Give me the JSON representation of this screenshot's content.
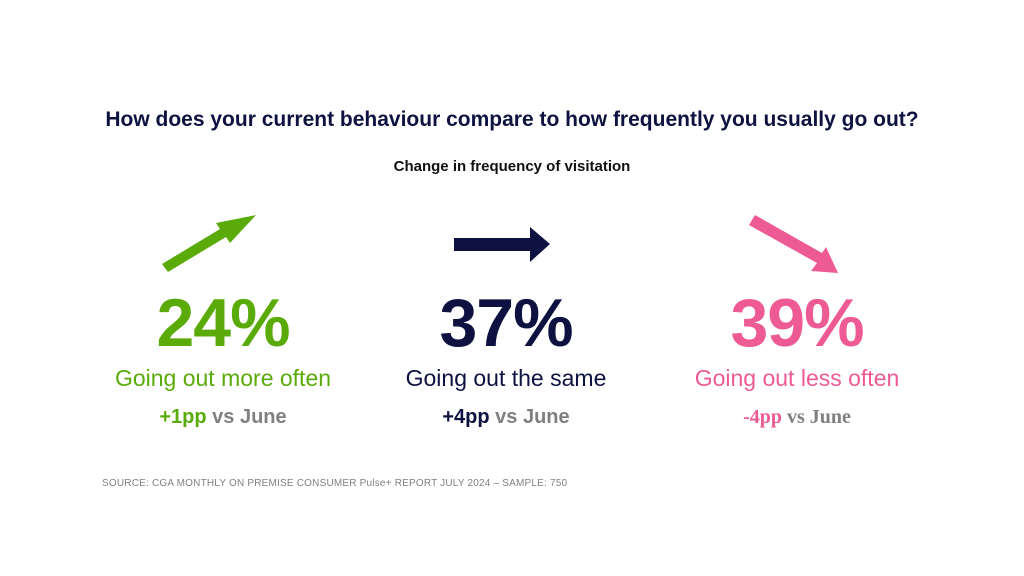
{
  "title": "How does your current behaviour compare to how frequently you usually go out?",
  "subtitle": "Change in frequency of visitation",
  "stats": [
    {
      "value": "24%",
      "label": "Going out more often",
      "delta": "+1pp",
      "vs": " vs June",
      "color": "#5aab0a",
      "arrow_icon": "arrow-up-right-icon"
    },
    {
      "value": "37%",
      "label": "Going out the same",
      "delta": "+4pp",
      "vs": " vs June",
      "color": "#0d1240",
      "arrow_icon": "arrow-right-icon"
    },
    {
      "value": "39%",
      "label": "Going out less often",
      "delta": "-4pp",
      "vs": " vs June",
      "color": "#ee5a94",
      "arrow_icon": "arrow-down-right-icon"
    }
  ],
  "source": "SOURCE: CGA MONTHLY ON PREMISE CONSUMER Pulse+ REPORT JULY 2024  – SAMPLE: 750"
}
